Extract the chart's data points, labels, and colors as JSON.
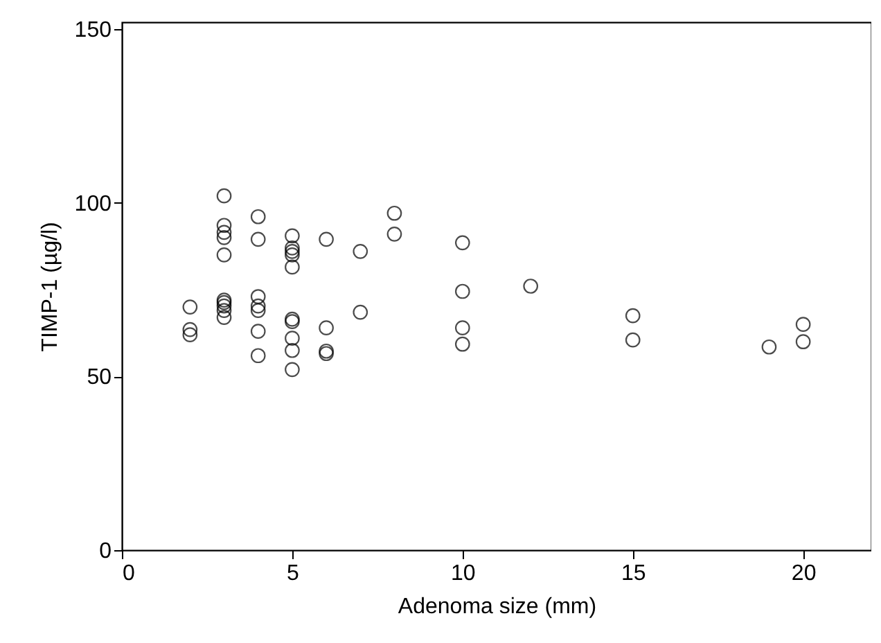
{
  "chart_data": {
    "type": "scatter",
    "xlabel": "Adenoma size (mm)",
    "ylabel": "TIMP-1 (µg/l)",
    "x": [
      2,
      2,
      2,
      3,
      3,
      3,
      3,
      3,
      3,
      3,
      3,
      3,
      3,
      4,
      4,
      4,
      4,
      4,
      4,
      4,
      5,
      5,
      5,
      5,
      5,
      5,
      5,
      5,
      5,
      5,
      6,
      6,
      6,
      6,
      7,
      7,
      8,
      8,
      10,
      10,
      10,
      10,
      12,
      15,
      15,
      19,
      20,
      20
    ],
    "values": [
      70,
      63.5,
      62,
      102,
      93.5,
      91.5,
      90,
      85,
      72,
      71.3,
      70.3,
      69,
      67,
      96,
      89.5,
      73,
      70.3,
      69,
      63,
      56,
      90.5,
      87,
      86,
      85,
      81.5,
      66.5,
      65.8,
      61,
      57.5,
      52,
      89.5,
      64,
      57.3,
      56.6,
      86,
      68.5,
      97,
      91,
      88.5,
      74.5,
      64,
      59.3,
      76,
      67.5,
      60.5,
      58.5,
      65,
      60
    ],
    "color": "#000000",
    "marker": "circle",
    "grid": false,
    "xlim": [
      0,
      22
    ],
    "xticks": [
      0,
      5,
      10,
      15,
      20
    ],
    "ylim": [
      0,
      152
    ],
    "yticks": [
      0,
      50,
      100,
      150
    ]
  }
}
